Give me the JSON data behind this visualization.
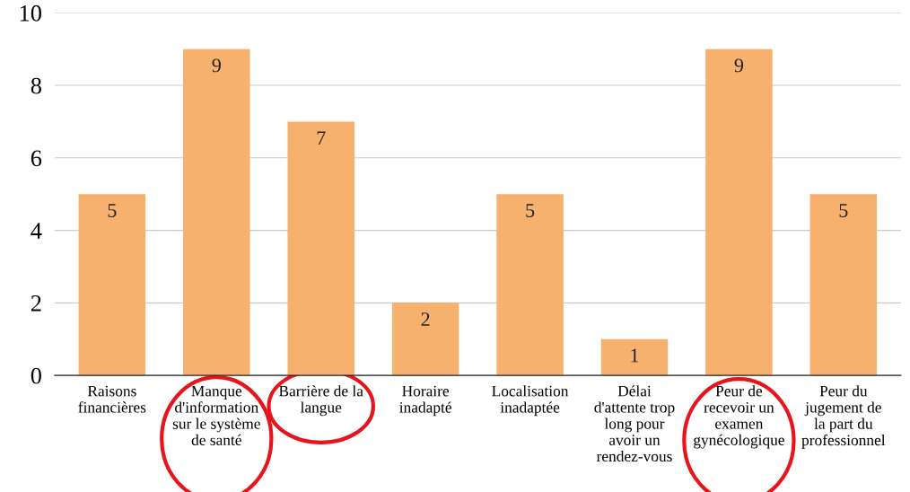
{
  "chart_data": {
    "type": "bar",
    "categories": [
      "Raisons\nfinancières",
      "Manque\nd'information\nsur le système\nde santé",
      "Barrière de la\nlangue",
      "Horaire\ninadapté",
      "Localisation\ninadaptée",
      "Délai\nd'attente trop\nlong pour\navoir un\nrendez-vous",
      "Peur de\nrecevoir un\nexamen\ngynécologique",
      "Peur du\njugement de\nla part du\nprofessionnel"
    ],
    "values": [
      5,
      9,
      7,
      2,
      5,
      1,
      9,
      5
    ],
    "color": "#f5b16d",
    "ylim": [
      0,
      10
    ],
    "yticks": [
      0,
      2,
      4,
      6,
      8,
      10
    ],
    "grid": "y",
    "data_labels": true
  }
}
